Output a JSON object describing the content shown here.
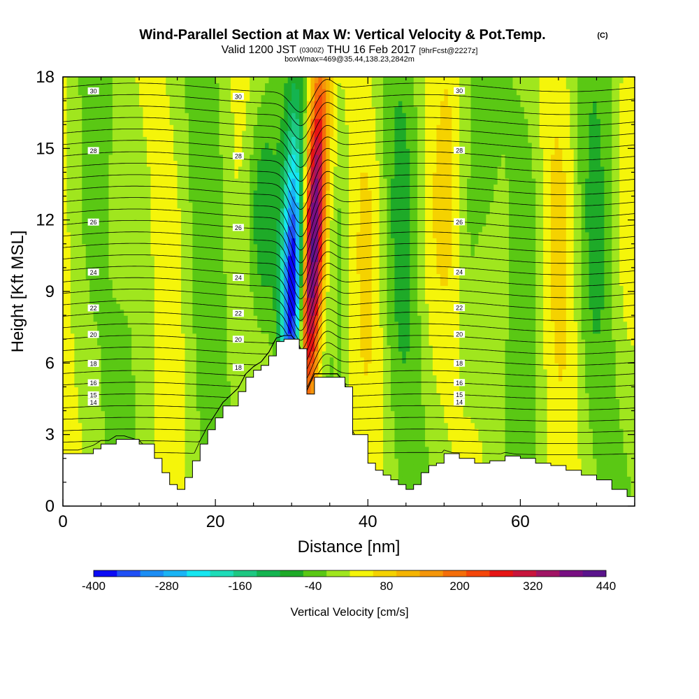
{
  "header": {
    "title": "Wind-Parallel Section at Max W: Vertical Velocity & Pot.Temp.",
    "copyright": "(C)",
    "valid_prefix": "Valid 1200 JST",
    "valid_utc": "(0300Z)",
    "valid_date": "THU 16 Feb 2017",
    "forecast": "[9hrFcst@2227z]",
    "box_info": "boxWmax=469@35.44,138.23,2842m"
  },
  "chart_data": {
    "type": "heatmap",
    "xlabel": "Distance [nm]",
    "ylabel": "Height [Kft MSL]",
    "xlim": [
      0,
      75
    ],
    "ylim": [
      0,
      18
    ],
    "x_ticks": [
      0,
      20,
      40,
      60
    ],
    "y_ticks": [
      0,
      3,
      6,
      9,
      12,
      15,
      18
    ],
    "colorbar": {
      "label": "Vertical Velocity [cm/s]",
      "min": -400,
      "max": 440,
      "step": 40,
      "tick_labels": [
        -400,
        -280,
        -160,
        -40,
        80,
        200,
        320,
        440
      ],
      "colors": [
        "#0b0bf5",
        "#2050f5",
        "#1c8ef5",
        "#1ab4f5",
        "#16e6f0",
        "#1edcb8",
        "#1ec882",
        "#14b450",
        "#1eaa28",
        "#5ac814",
        "#a0e61e",
        "#f5f50a",
        "#f5d200",
        "#f5b400",
        "#f5960a",
        "#f56e0a",
        "#f5460a",
        "#e61414",
        "#c8143c",
        "#a01464",
        "#780f82",
        "#5a148c"
      ]
    },
    "wind_core": {
      "downdraft_min_cm_s": -400,
      "updraft_max_cm_s": 440,
      "downdraft_distance_nm": 30,
      "updraft_distance_nm": 32.5
    },
    "terrain_heights_kft": {
      "x": [
        0,
        2,
        4,
        5,
        6,
        7,
        8,
        10,
        12,
        13,
        14,
        15,
        16,
        17,
        18,
        19,
        20,
        21,
        23,
        24,
        25,
        26,
        27,
        28,
        29,
        30,
        31,
        32,
        33,
        34,
        35,
        36,
        37,
        38,
        40,
        41,
        42,
        43,
        44,
        45,
        46,
        47,
        48,
        49,
        50,
        52,
        54,
        56,
        58,
        60,
        62,
        64,
        66,
        68,
        70,
        72,
        74,
        75
      ],
      "y": [
        2.2,
        2.2,
        2.4,
        2.6,
        2.6,
        2.8,
        2.8,
        2.6,
        2.0,
        1.4,
        0.9,
        0.7,
        1.2,
        1.9,
        2.6,
        3.2,
        3.7,
        4.2,
        4.8,
        5.4,
        5.7,
        5.9,
        6.3,
        6.9,
        7.0,
        7.0,
        6.6,
        4.7,
        5.4,
        5.4,
        5.4,
        5.4,
        5.0,
        3.0,
        1.8,
        1.5,
        1.3,
        1.1,
        0.9,
        0.7,
        0.9,
        1.4,
        1.7,
        1.8,
        2.2,
        2.0,
        1.8,
        1.9,
        2.1,
        2.0,
        1.8,
        1.7,
        1.5,
        1.3,
        1.1,
        0.7,
        0.4,
        0.4
      ]
    },
    "theta_contours": [
      {
        "label": "30",
        "height_kft": 17.3
      },
      {
        "label": "28",
        "height_kft": 14.8
      },
      {
        "label": "26",
        "height_kft": 11.8
      },
      {
        "label": "24",
        "height_kft": 9.7
      },
      {
        "label": "22",
        "height_kft": 8.2
      },
      {
        "label": "20",
        "height_kft": 7.1
      },
      {
        "label": "18",
        "height_kft": 5.9
      },
      {
        "label": "16",
        "height_kft": 5.1
      },
      {
        "label": "15",
        "height_kft": 4.6
      },
      {
        "label": "14",
        "height_kft": 4.3
      }
    ]
  }
}
